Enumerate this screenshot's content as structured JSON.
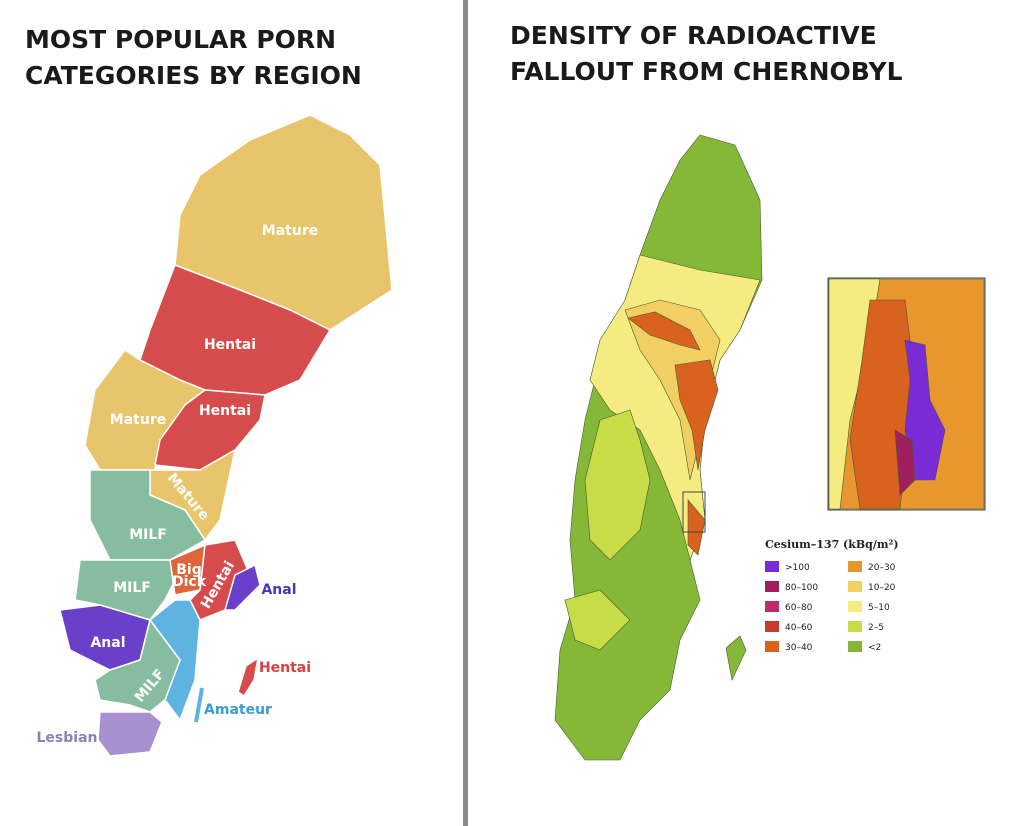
{
  "left": {
    "title_lines": [
      "MOST POPULAR PORN",
      "CATEGORIES BY REGION"
    ],
    "labels": [
      "Mature",
      "Hentai",
      "Hentai",
      "Mature",
      "Mature",
      "MILF",
      "MILF",
      "Big",
      "Dick",
      "Hentai",
      "Anal",
      "Anal",
      "MILF",
      "Hentai",
      "Amateur",
      "Lesbian"
    ]
  },
  "right": {
    "title_lines": [
      "DENSITY OF RADIOACTIVE",
      "FALLOUT FROM CHERNOBYL"
    ],
    "legend": {
      "title": "Cesium–137 (kBq/m²)",
      "items": [
        {
          "label": ">100",
          "color": "#7a2bd6"
        },
        {
          "label": "80–100",
          "color": "#a0205e"
        },
        {
          "label": "60–80",
          "color": "#c02a6a"
        },
        {
          "label": "40–60",
          "color": "#c83a2c"
        },
        {
          "label": "30–40",
          "color": "#d8621e"
        },
        {
          "label": "20–30",
          "color": "#e8962e"
        },
        {
          "label": "10–20",
          "color": "#f2cf62"
        },
        {
          "label": "5–10",
          "color": "#f4ec80"
        },
        {
          "label": "2–5",
          "color": "#c8dc48"
        },
        {
          "label": "<2",
          "color": "#86b838"
        }
      ]
    }
  }
}
